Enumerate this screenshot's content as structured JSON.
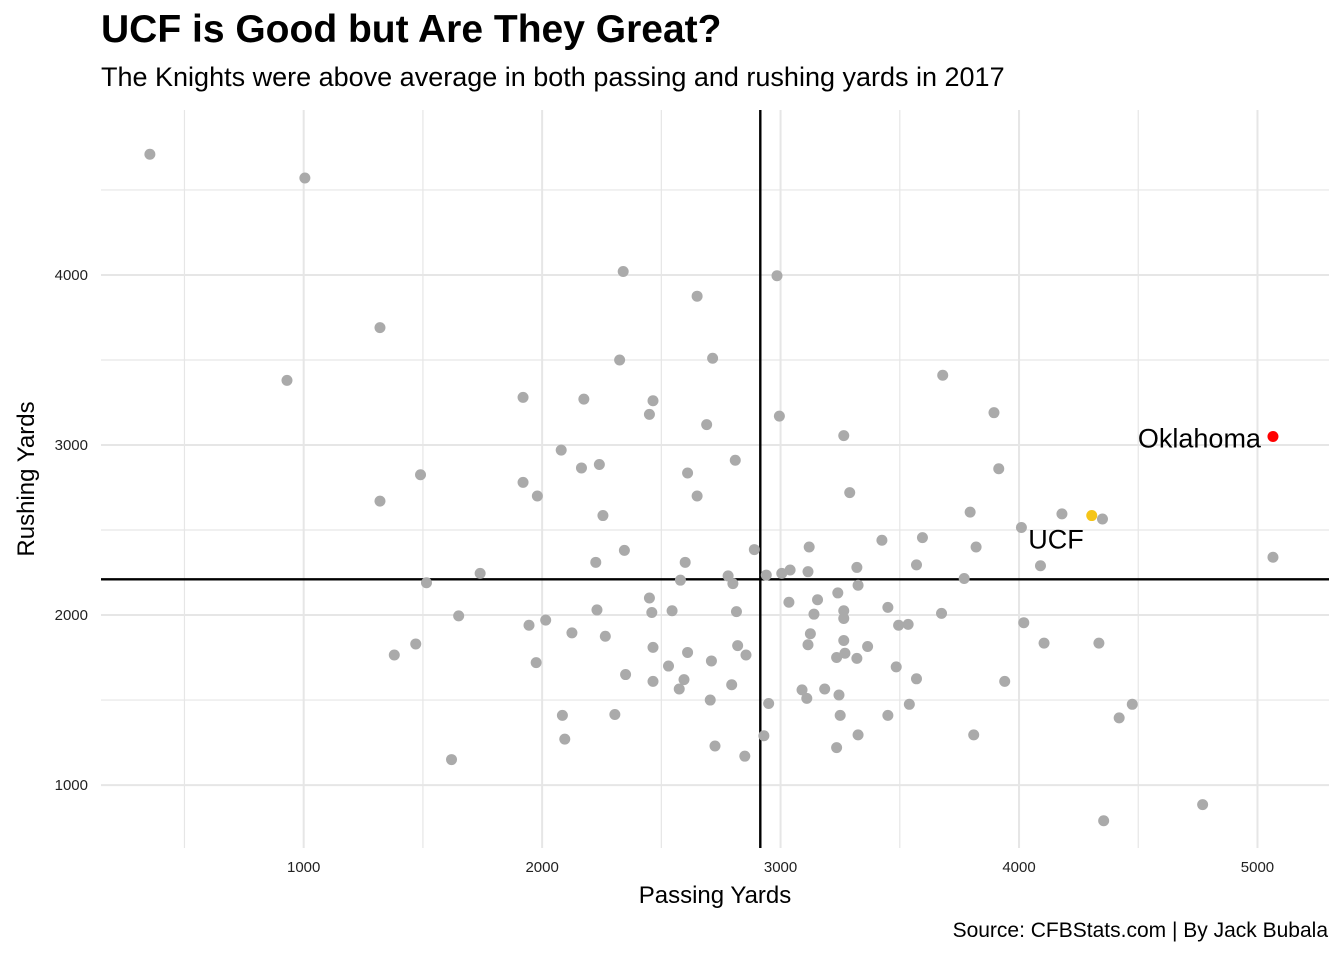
{
  "chart_data": {
    "type": "scatter",
    "title": "UCF is Good but Are They Great?",
    "subtitle": "The Knights were above average in both passing and rushing yards in 2017",
    "caption": "Source: CFBStats.com | By Jack Bubala",
    "xlabel": "Passing Yards",
    "ylabel": "Rushing Yards",
    "xlim": [
      150,
      5300
    ],
    "ylim": [
      630,
      4970
    ],
    "x_ticks": [
      1000,
      2000,
      3000,
      4000,
      5000
    ],
    "y_ticks": [
      1000,
      2000,
      3000,
      4000
    ],
    "grid": true,
    "mean_lines": {
      "x": 2915,
      "y": 2210
    },
    "colors": {
      "default": "#aaaaaa",
      "ucf": "#f5c518",
      "oklahoma": "#ff0000",
      "grid": "#e6e6e6",
      "lines": "#000000"
    },
    "highlights": [
      {
        "label": "UCF",
        "x": 4305,
        "y": 2585,
        "color": "#f5c518"
      },
      {
        "label": "Oklahoma",
        "x": 5065,
        "y": 3050,
        "color": "#ff0000"
      }
    ],
    "points": [
      [
        355,
        4710
      ],
      [
        1005,
        4570
      ],
      [
        930,
        3380
      ],
      [
        1320,
        3690
      ],
      [
        1320,
        2670
      ],
      [
        1490,
        2825
      ],
      [
        1515,
        2190
      ],
      [
        1380,
        1765
      ],
      [
        1470,
        1830
      ],
      [
        1620,
        1150
      ],
      [
        1650,
        1995
      ],
      [
        1740,
        2245
      ],
      [
        1920,
        3280
      ],
      [
        1920,
        2780
      ],
      [
        1945,
        1940
      ],
      [
        1980,
        2700
      ],
      [
        1975,
        1720
      ],
      [
        2015,
        1970
      ],
      [
        2080,
        2970
      ],
      [
        2085,
        1410
      ],
      [
        2095,
        1270
      ],
      [
        2125,
        1895
      ],
      [
        2165,
        2865
      ],
      [
        2175,
        3270
      ],
      [
        2225,
        2310
      ],
      [
        2230,
        2030
      ],
      [
        2240,
        2885
      ],
      [
        2255,
        2585
      ],
      [
        2265,
        1875
      ],
      [
        2305,
        1415
      ],
      [
        2325,
        3500
      ],
      [
        2340,
        4020
      ],
      [
        2345,
        2380
      ],
      [
        2350,
        1650
      ],
      [
        2450,
        3180
      ],
      [
        2450,
        2100
      ],
      [
        2460,
        2015
      ],
      [
        2465,
        3260
      ],
      [
        2465,
        1810
      ],
      [
        2465,
        1610
      ],
      [
        2530,
        1700
      ],
      [
        2545,
        2025
      ],
      [
        2575,
        1565
      ],
      [
        2580,
        2205
      ],
      [
        2595,
        1620
      ],
      [
        2600,
        2310
      ],
      [
        2610,
        2835
      ],
      [
        2610,
        1780
      ],
      [
        2650,
        3875
      ],
      [
        2650,
        2700
      ],
      [
        2690,
        3120
      ],
      [
        2705,
        1500
      ],
      [
        2710,
        1730
      ],
      [
        2715,
        3510
      ],
      [
        2725,
        1230
      ],
      [
        2780,
        2230
      ],
      [
        2795,
        1590
      ],
      [
        2800,
        2185
      ],
      [
        2810,
        2910
      ],
      [
        2815,
        2020
      ],
      [
        2820,
        1820
      ],
      [
        2850,
        1170
      ],
      [
        2855,
        1765
      ],
      [
        2890,
        2385
      ],
      [
        2930,
        1290
      ],
      [
        2940,
        2235
      ],
      [
        2950,
        1480
      ],
      [
        2985,
        3995
      ],
      [
        2995,
        3170
      ],
      [
        3005,
        2245
      ],
      [
        3040,
        2265
      ],
      [
        3035,
        2075
      ],
      [
        3090,
        1560
      ],
      [
        3110,
        1510
      ],
      [
        3115,
        2255
      ],
      [
        3115,
        1825
      ],
      [
        3120,
        2400
      ],
      [
        3125,
        1890
      ],
      [
        3140,
        2005
      ],
      [
        3155,
        2090
      ],
      [
        3185,
        1565
      ],
      [
        3235,
        1750
      ],
      [
        3240,
        2130
      ],
      [
        3235,
        1220
      ],
      [
        3245,
        1530
      ],
      [
        3250,
        1410
      ],
      [
        3265,
        3055
      ],
      [
        3265,
        2025
      ],
      [
        3265,
        1850
      ],
      [
        3265,
        1980
      ],
      [
        3270,
        1775
      ],
      [
        3290,
        2720
      ],
      [
        3320,
        2280
      ],
      [
        3320,
        1745
      ],
      [
        3325,
        2175
      ],
      [
        3325,
        1295
      ],
      [
        3365,
        1815
      ],
      [
        3425,
        2440
      ],
      [
        3450,
        2045
      ],
      [
        3450,
        1410
      ],
      [
        3485,
        1695
      ],
      [
        3495,
        1940
      ],
      [
        3535,
        1945
      ],
      [
        3540,
        1475
      ],
      [
        3570,
        2295
      ],
      [
        3570,
        1625
      ],
      [
        3595,
        2455
      ],
      [
        3675,
        2010
      ],
      [
        3680,
        3410
      ],
      [
        3770,
        2215
      ],
      [
        3795,
        2605
      ],
      [
        3810,
        1295
      ],
      [
        3820,
        2400
      ],
      [
        3895,
        3190
      ],
      [
        3915,
        2860
      ],
      [
        3940,
        1610
      ],
      [
        4010,
        2515
      ],
      [
        4020,
        1955
      ],
      [
        4090,
        2290
      ],
      [
        4105,
        1835
      ],
      [
        4180,
        2595
      ],
      [
        4335,
        1835
      ],
      [
        4350,
        2565
      ],
      [
        4355,
        790
      ],
      [
        4420,
        1395
      ],
      [
        4475,
        1475
      ],
      [
        4770,
        885
      ],
      [
        5065,
        2340
      ]
    ]
  }
}
